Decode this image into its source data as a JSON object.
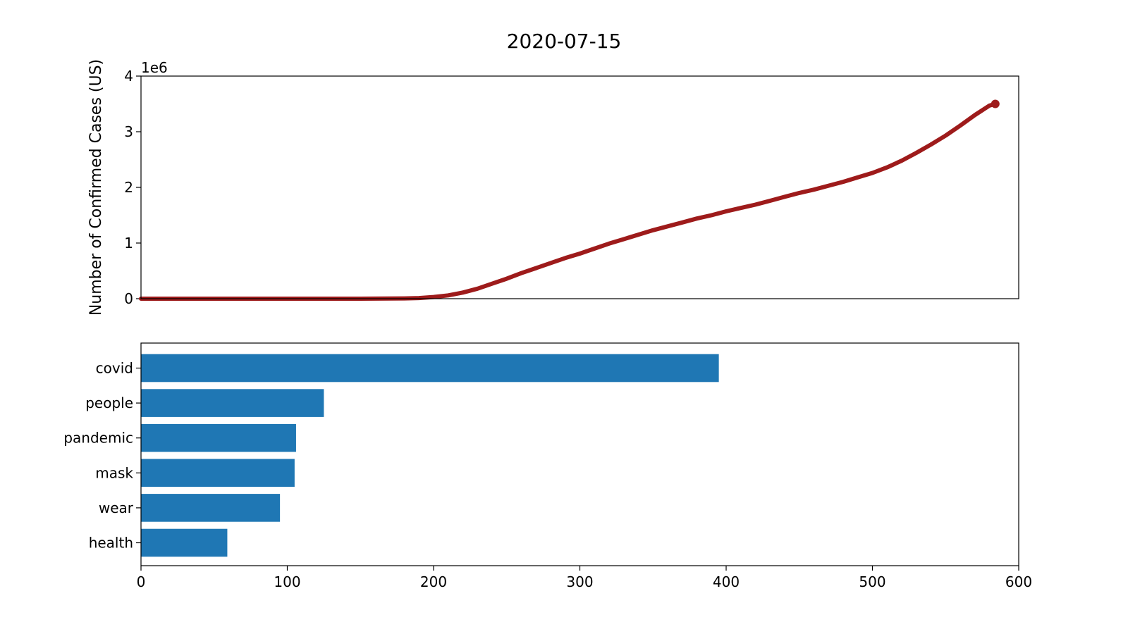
{
  "figure": {
    "title": "2020-07-15"
  },
  "chart_data": [
    {
      "type": "line",
      "title": "2020-07-15",
      "xlabel": "",
      "ylabel": "Number of Confirmed Cases (US)",
      "offset_label": "1e6",
      "xlim": [
        0,
        600
      ],
      "ylim": [
        0,
        4000000
      ],
      "yticks": [
        0,
        1000000,
        2000000,
        3000000,
        4000000
      ],
      "ytick_labels": [
        "0",
        "1",
        "2",
        "3",
        "4"
      ],
      "x_ticks_visible": false,
      "line_color": "#9e1b1b",
      "end_marker": true,
      "grid": false,
      "series": [
        {
          "x": [
            0,
            50,
            100,
            150,
            170,
            180,
            190,
            200,
            210,
            220,
            230,
            240,
            250,
            260,
            270,
            280,
            290,
            300,
            310,
            320,
            330,
            340,
            350,
            360,
            370,
            380,
            390,
            400,
            410,
            420,
            430,
            440,
            450,
            460,
            470,
            480,
            490,
            500,
            510,
            520,
            530,
            540,
            550,
            560,
            570,
            580,
            584
          ],
          "y": [
            0,
            0,
            0,
            0,
            2000,
            5000,
            12000,
            30000,
            60000,
            110000,
            180000,
            270000,
            360000,
            460000,
            550000,
            640000,
            730000,
            810000,
            900000,
            990000,
            1070000,
            1150000,
            1230000,
            1300000,
            1370000,
            1440000,
            1500000,
            1570000,
            1630000,
            1690000,
            1760000,
            1830000,
            1900000,
            1960000,
            2030000,
            2100000,
            2180000,
            2260000,
            2360000,
            2480000,
            2620000,
            2770000,
            2930000,
            3110000,
            3300000,
            3470000,
            3500000
          ]
        }
      ]
    },
    {
      "type": "bar",
      "orientation": "horizontal",
      "categories": [
        "covid",
        "people",
        "pandemic",
        "mask",
        "wear",
        "health"
      ],
      "values": [
        395,
        125,
        106,
        105,
        95,
        59
      ],
      "xlim": [
        0,
        600
      ],
      "xticks": [
        0,
        100,
        200,
        300,
        400,
        500,
        600
      ],
      "xtick_labels": [
        "0",
        "100",
        "200",
        "300",
        "400",
        "500",
        "600"
      ],
      "xlabel": "",
      "ylabel": "",
      "bar_color": "#1f77b4",
      "grid": false
    }
  ]
}
